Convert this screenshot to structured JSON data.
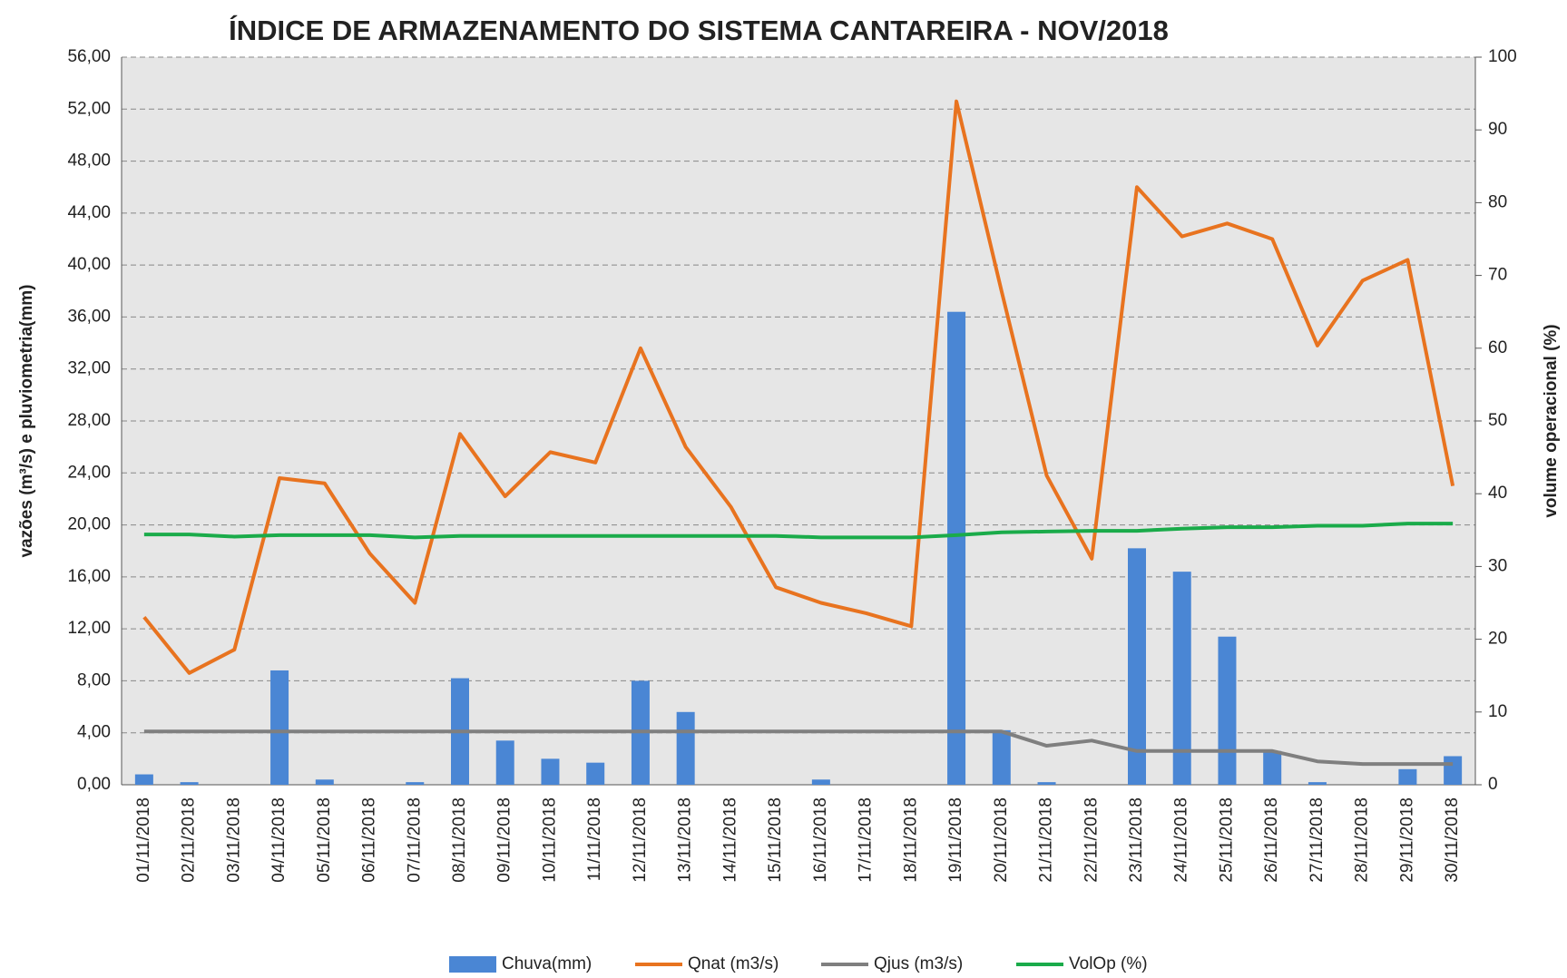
{
  "chart_data": {
    "type": "bar-line",
    "title": "ÍNDICE DE ARMAZENAMENTO DO SISTEMA CANTAREIRA - NOV/2018",
    "y_label": "vazões (m³/s) e pluviometria(mm)",
    "y2_label": "volume operacional (%)",
    "categories": [
      "01/11/2018",
      "02/11/2018",
      "03/11/2018",
      "04/11/2018",
      "05/11/2018",
      "06/11/2018",
      "07/11/2018",
      "08/11/2018",
      "09/11/2018",
      "10/11/2018",
      "11/11/2018",
      "12/11/2018",
      "13/11/2018",
      "14/11/2018",
      "15/11/2018",
      "16/11/2018",
      "17/11/2018",
      "18/11/2018",
      "19/11/2018",
      "20/11/2018",
      "21/11/2018",
      "22/11/2018",
      "23/11/2018",
      "24/11/2018",
      "25/11/2018",
      "26/11/2018",
      "27/11/2018",
      "28/11/2018",
      "29/11/2018",
      "30/11/2018"
    ],
    "series": [
      {
        "name": "Chuva(mm)",
        "kind": "bar",
        "color": "#4a86d4",
        "values": [
          0.8,
          0.2,
          0,
          8.8,
          0.4,
          0,
          0.2,
          8.2,
          3.4,
          2.0,
          1.7,
          8.0,
          5.6,
          0,
          0,
          0.4,
          0,
          0,
          36.4,
          4.2,
          0.2,
          0,
          18.2,
          16.4,
          11.4,
          2.6,
          0.2,
          0,
          1.2,
          2.2
        ]
      },
      {
        "name": "Qnat (m3/s)",
        "kind": "line",
        "color": "#e8731f",
        "values": [
          12.9,
          8.6,
          10.4,
          23.6,
          23.2,
          17.8,
          14.0,
          27.0,
          22.2,
          25.6,
          24.8,
          33.6,
          26.0,
          21.4,
          15.2,
          14.0,
          13.2,
          12.2,
          52.6,
          38.0,
          23.8,
          17.4,
          46.0,
          42.2,
          43.2,
          42.0,
          33.8,
          38.8,
          40.4,
          23.0
        ]
      },
      {
        "name": "Qjus (m3/s)",
        "kind": "line",
        "color": "#7f7f7f",
        "values": [
          4.1,
          4.1,
          4.1,
          4.1,
          4.1,
          4.1,
          4.1,
          4.1,
          4.1,
          4.1,
          4.1,
          4.1,
          4.1,
          4.1,
          4.1,
          4.1,
          4.1,
          4.1,
          4.1,
          4.1,
          3.0,
          3.4,
          2.6,
          2.6,
          2.6,
          2.6,
          1.8,
          1.6,
          1.6,
          1.6
        ]
      },
      {
        "name": "VolOp (%)",
        "kind": "line",
        "axis": "y2",
        "color": "#1aab4a",
        "values": [
          34.4,
          34.4,
          34.1,
          34.3,
          34.3,
          34.3,
          34.0,
          34.2,
          34.2,
          34.2,
          34.2,
          34.2,
          34.2,
          34.2,
          34.2,
          34.0,
          34.0,
          34.0,
          34.3,
          34.7,
          34.8,
          34.9,
          34.9,
          35.2,
          35.4,
          35.4,
          35.6,
          35.6,
          35.9,
          35.9
        ]
      }
    ],
    "ylim": [
      0,
      56
    ],
    "yticks": [
      {
        "value": 0,
        "label": "0,00"
      },
      {
        "value": 4,
        "label": "4,00"
      },
      {
        "value": 8,
        "label": "8,00"
      },
      {
        "value": 12,
        "label": "12,00"
      },
      {
        "value": 16,
        "label": "16,00"
      },
      {
        "value": 20,
        "label": "20,00"
      },
      {
        "value": 24,
        "label": "24,00"
      },
      {
        "value": 28,
        "label": "28,00"
      },
      {
        "value": 32,
        "label": "32,00"
      },
      {
        "value": 36,
        "label": "36,00"
      },
      {
        "value": 40,
        "label": "40,00"
      },
      {
        "value": 44,
        "label": "44,00"
      },
      {
        "value": 48,
        "label": "48,00"
      },
      {
        "value": 52,
        "label": "52,00"
      },
      {
        "value": 56,
        "label": "56,00"
      }
    ],
    "y2lim": [
      0,
      100
    ],
    "y2ticks": [
      0,
      10,
      20,
      30,
      40,
      50,
      60,
      70,
      80,
      90,
      100
    ],
    "grid": true
  }
}
